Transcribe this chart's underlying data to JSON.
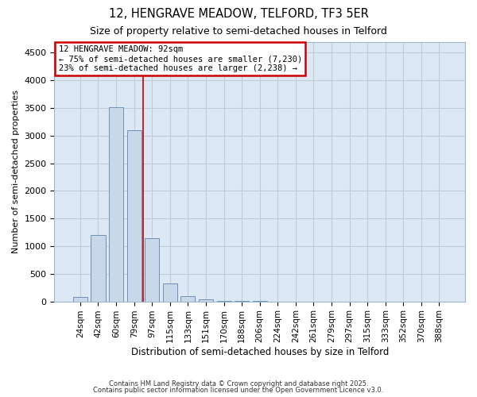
{
  "title_line1": "12, HENGRAVE MEADOW, TELFORD, TF3 5ER",
  "title_line2": "Size of property relative to semi-detached houses in Telford",
  "xlabel": "Distribution of semi-detached houses by size in Telford",
  "ylabel": "Number of semi-detached properties",
  "categories": [
    "24sqm",
    "42sqm",
    "60sqm",
    "79sqm",
    "97sqm",
    "115sqm",
    "133sqm",
    "151sqm",
    "170sqm",
    "188sqm",
    "206sqm",
    "224sqm",
    "242sqm",
    "261sqm",
    "279sqm",
    "297sqm",
    "315sqm",
    "333sqm",
    "352sqm",
    "370sqm",
    "388sqm"
  ],
  "values": [
    75,
    1200,
    3520,
    3100,
    1140,
    330,
    90,
    40,
    10,
    5,
    2,
    1,
    0,
    0,
    0,
    0,
    0,
    0,
    0,
    0,
    0
  ],
  "bar_color": "#c8d8e8",
  "bar_edge_color": "#7090b8",
  "annotation_text_line1": "12 HENGRAVE MEADOW: 92sqm",
  "annotation_text_line2": "← 75% of semi-detached houses are smaller (7,230)",
  "annotation_text_line3": "23% of semi-detached houses are larger (2,238) →",
  "ylim": [
    0,
    4700
  ],
  "yticks": [
    0,
    500,
    1000,
    1500,
    2000,
    2500,
    3000,
    3500,
    4000,
    4500
  ],
  "red_line_color": "#cc0000",
  "annotation_box_edge": "#cc0000",
  "grid_color": "#c0ccd8",
  "bg_color": "#dce8f4",
  "footer_line1": "Contains HM Land Registry data © Crown copyright and database right 2025.",
  "footer_line2": "Contains public sector information licensed under the Open Government Licence v3.0."
}
